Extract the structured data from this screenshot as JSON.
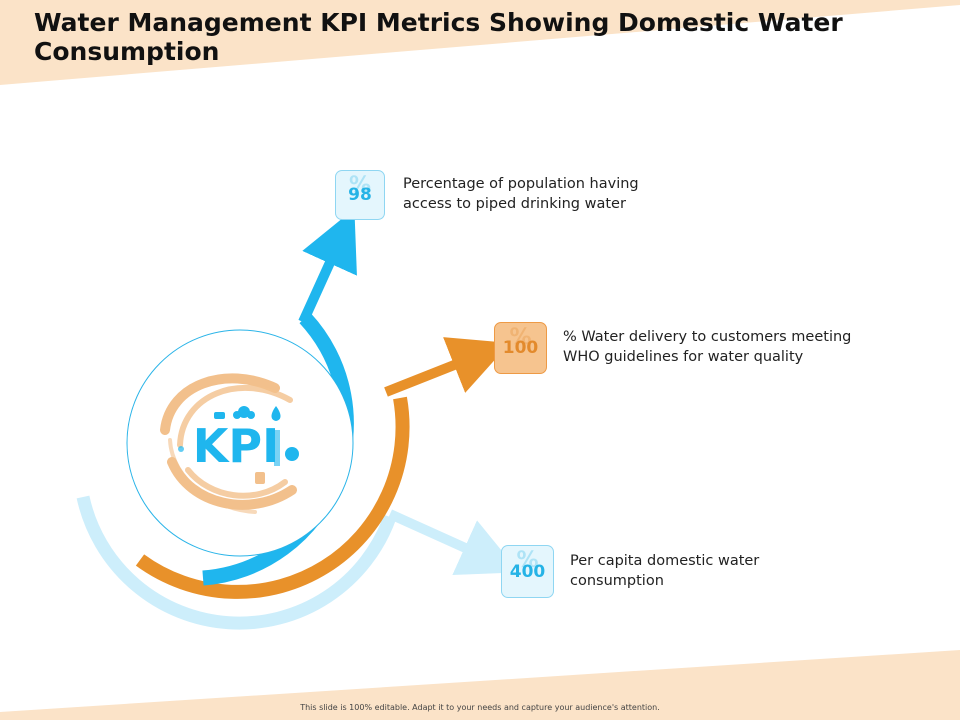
{
  "slide": {
    "title": "Water Management KPI Metrics Showing Domestic Water Consumption",
    "footer": "This slide is 100% editable. Adapt it to your needs and capture your audience's attention."
  },
  "colors": {
    "band": "#fbe3c8",
    "blue": "#1fb6ee",
    "orange": "#e8912a",
    "light_blue": "#cdeefb"
  },
  "center_logo": {
    "text": "KPI"
  },
  "kpis": [
    {
      "value": "98",
      "symbol": "%",
      "color": "blue",
      "description_line1": "Percentage of population having",
      "description_line2": "access to piped drinking water"
    },
    {
      "value": "100",
      "symbol": "%",
      "color": "orange",
      "description_line1": "% Water delivery to customers meeting",
      "description_line2": "WHO guidelines for water quality"
    },
    {
      "value": "400",
      "symbol": "%",
      "color": "blue",
      "description_line1": "Per capita domestic water",
      "description_line2": "consumption"
    }
  ]
}
